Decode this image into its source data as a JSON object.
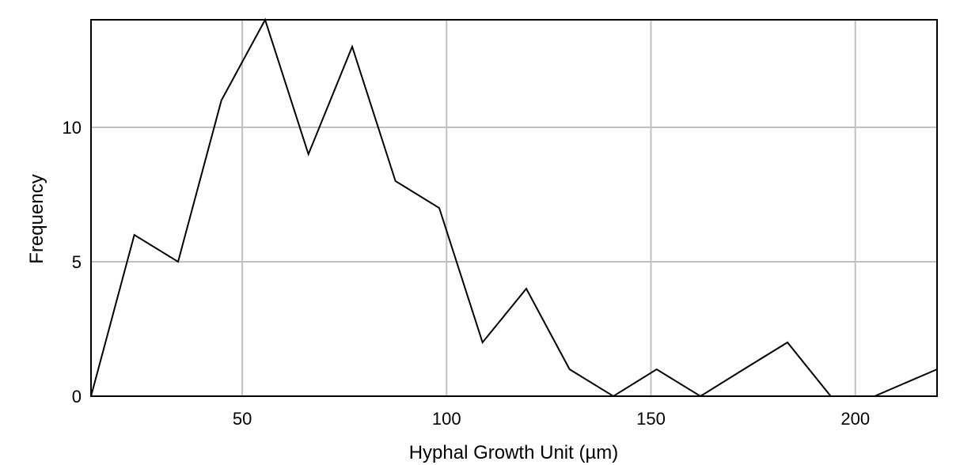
{
  "chart_data": {
    "type": "line",
    "title": "",
    "xlabel": "Hyphal Growth Unit (µm)",
    "ylabel": "Frequency",
    "xlim": [
      13,
      220
    ],
    "ylim": [
      0,
      14
    ],
    "x_ticks": [
      50,
      100,
      150,
      200
    ],
    "y_ticks": [
      0,
      5,
      10
    ],
    "grid": true,
    "series": [
      {
        "name": "",
        "x": [
          13,
          23.6,
          34.3,
          44.9,
          55.6,
          66.2,
          76.9,
          87.5,
          98.2,
          108.8,
          119.5,
          130.1,
          140.8,
          151.4,
          162.1,
          172.7,
          183.4,
          194,
          204.7,
          220
        ],
        "y": [
          0,
          6,
          5,
          11,
          14,
          9,
          13,
          8,
          7,
          2,
          4,
          1,
          0,
          1,
          0,
          1,
          2,
          0,
          0,
          1
        ]
      }
    ]
  }
}
